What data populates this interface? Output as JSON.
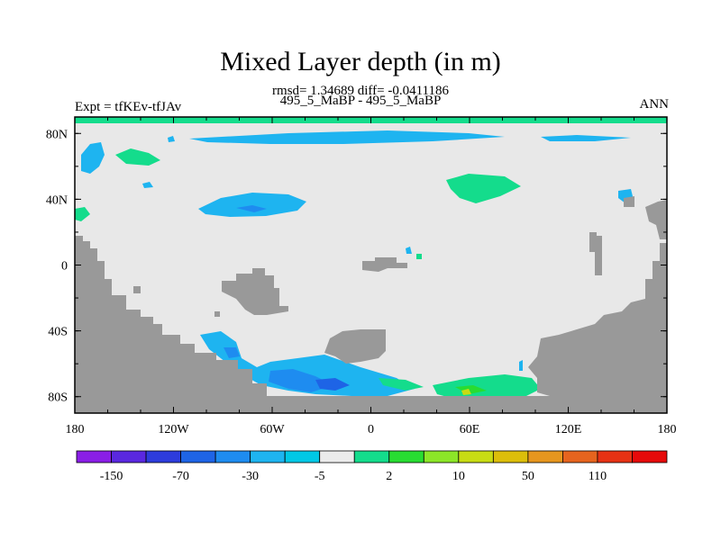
{
  "header": {
    "title": "Mixed Layer depth (in m)",
    "stats": "rmsd= 1.34689 diff= -0.0411186",
    "subtitle": "495_5_MaBP - 495_5_MaBP",
    "left_label": "Expt = tfKEv-tfJAv",
    "right_label": "ANN"
  },
  "chart_data": {
    "type": "heatmap",
    "x_ticks": [
      "180",
      "120W",
      "60W",
      "0",
      "60E",
      "120E",
      "180"
    ],
    "y_ticks": [
      "80N",
      "40N",
      "0",
      "40S",
      "80S"
    ],
    "xlim": [
      -180,
      180
    ],
    "ylim": [
      -90,
      90
    ],
    "colorbar": {
      "labels": [
        "-150",
        "-70",
        "-30",
        "-5",
        "2",
        "10",
        "50",
        "110"
      ],
      "colors": [
        "#8a1ee6",
        "#5a28e0",
        "#2d3cdc",
        "#1e64e6",
        "#1e8cf0",
        "#1eb4f0",
        "#00c8e6",
        "#ebebeb",
        "#14dc8c",
        "#28dc32",
        "#8ce628",
        "#c8dc14",
        "#dcbe0a",
        "#e6961e",
        "#e6641e",
        "#e63214",
        "#e60a0a"
      ]
    },
    "colors": {
      "land": "#999999",
      "background": "#e8e8e8",
      "negative_small": "#1eb4f0",
      "negative_medium": "#1e8cf0",
      "negative_large": "#1e64e6",
      "positive_small": "#14dc8c",
      "positive_medium": "#28dc32",
      "positive_large": "#c8dc14"
    }
  }
}
